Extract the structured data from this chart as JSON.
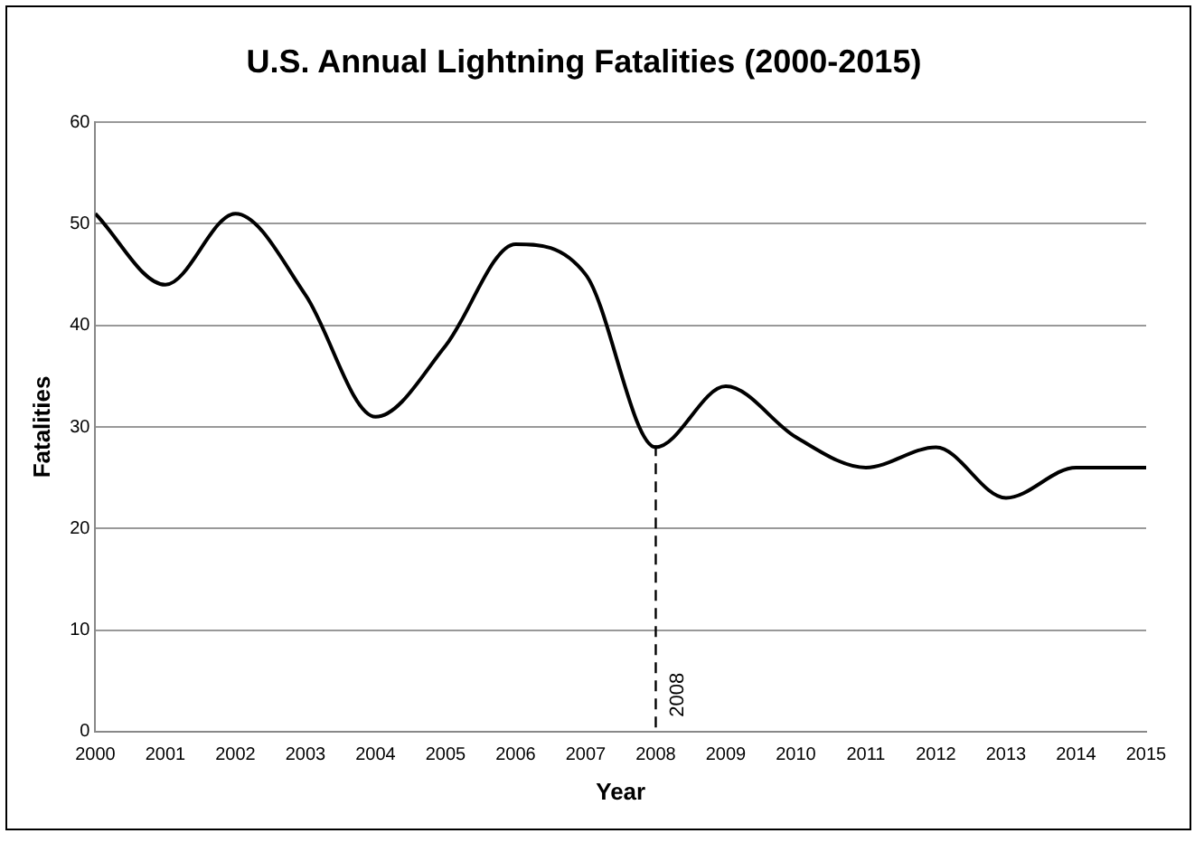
{
  "chart_data": {
    "type": "line",
    "title": "U.S. Annual Lightning Fatalities (2000-2015)",
    "xlabel": "Year",
    "ylabel": "Fatalities",
    "x": [
      2000,
      2001,
      2002,
      2003,
      2004,
      2005,
      2006,
      2007,
      2008,
      2009,
      2010,
      2011,
      2012,
      2013,
      2014,
      2015
    ],
    "series": [
      {
        "color": "#000000",
        "values": [
          51,
          44,
          51,
          43,
          31,
          38,
          48,
          45,
          28,
          34,
          29,
          26,
          28,
          23,
          26,
          26
        ]
      }
    ],
    "xlim": [
      2000,
      2015
    ],
    "xticks": [
      2000,
      2001,
      2002,
      2003,
      2004,
      2005,
      2006,
      2007,
      2008,
      2009,
      2010,
      2011,
      2012,
      2013,
      2014,
      2015
    ],
    "ylim": [
      0,
      60
    ],
    "yticks": [
      0,
      10,
      20,
      30,
      40,
      50,
      60
    ],
    "grid": "y",
    "legend": false,
    "marker": "none",
    "line_style": "solid",
    "ref_lines": [
      {
        "axis": "x",
        "value": 2008,
        "label": "2008",
        "color": "#000000",
        "line_style": "dashed"
      }
    ]
  }
}
